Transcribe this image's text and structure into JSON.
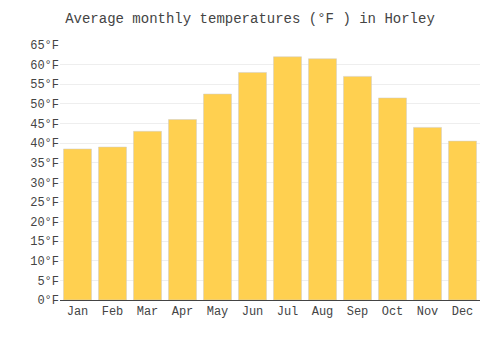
{
  "chart_data": {
    "type": "bar",
    "title": "Average monthly temperatures (°F ) in Horley",
    "categories": [
      "Jan",
      "Feb",
      "Mar",
      "Apr",
      "May",
      "Jun",
      "Jul",
      "Aug",
      "Sep",
      "Oct",
      "Nov",
      "Dec"
    ],
    "values": [
      38.5,
      39.0,
      43.0,
      46.0,
      52.5,
      58.0,
      62.0,
      61.5,
      57.0,
      51.5,
      44.0,
      40.5
    ],
    "color": "#FFD050",
    "ylim": [
      0,
      65
    ],
    "yticks": [
      {
        "value": 0,
        "label": "0°F"
      },
      {
        "value": 5,
        "label": "5°F"
      },
      {
        "value": 10,
        "label": "10°F"
      },
      {
        "value": 15,
        "label": "15°F"
      },
      {
        "value": 20,
        "label": "20°F"
      },
      {
        "value": 25,
        "label": "25°F"
      },
      {
        "value": 30,
        "label": "30°F"
      },
      {
        "value": 35,
        "label": "35°F"
      },
      {
        "value": 40,
        "label": "40°F"
      },
      {
        "value": 45,
        "label": "45°F"
      },
      {
        "value": 50,
        "label": "50°F"
      },
      {
        "value": 55,
        "label": "55°F"
      },
      {
        "value": 60,
        "label": "60°F"
      },
      {
        "value": 65,
        "label": "65°F"
      }
    ],
    "grid": true
  }
}
